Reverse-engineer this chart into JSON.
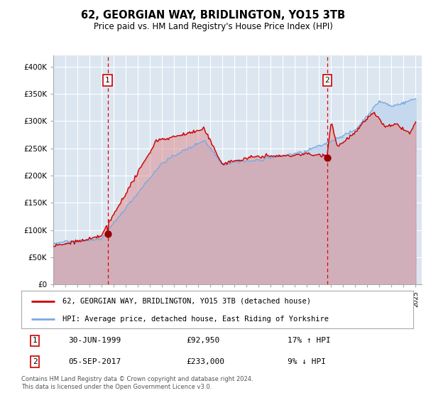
{
  "title": "62, GEORGIAN WAY, BRIDLINGTON, YO15 3TB",
  "subtitle": "Price paid vs. HM Land Registry's House Price Index (HPI)",
  "ylim": [
    0,
    420000
  ],
  "xlim_start": 1995.0,
  "xlim_end": 2025.5,
  "marker1_date": 1999.5,
  "marker1_price": 92950,
  "marker2_date": 2017.67,
  "marker2_price": 233000,
  "red_color": "#cc0000",
  "blue_color": "#7aaadd",
  "red_fill_color": "#dd8888",
  "blue_fill_color": "#c5d8ee",
  "background_color": "#dce6f1",
  "grid_color": "#ffffff",
  "footer": "Contains HM Land Registry data © Crown copyright and database right 2024.\nThis data is licensed under the Open Government Licence v3.0.",
  "legend_line1": "62, GEORGIAN WAY, BRIDLINGTON, YO15 3TB (detached house)",
  "legend_line2": "HPI: Average price, detached house, East Riding of Yorkshire",
  "table_row1": [
    "1",
    "30-JUN-1999",
    "£92,950",
    "17% ↑ HPI"
  ],
  "table_row2": [
    "2",
    "05-SEP-2017",
    "£233,000",
    "9% ↓ HPI"
  ]
}
